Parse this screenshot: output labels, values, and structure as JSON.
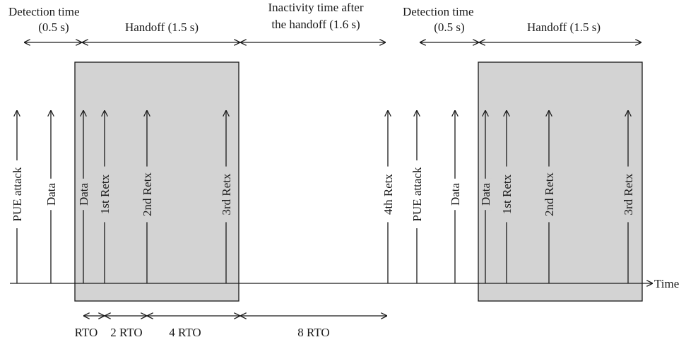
{
  "top_labels": {
    "detection_1": {
      "line1": "Detection time",
      "line2": "(0.5 s)"
    },
    "handoff_1": "Handoff (1.5 s)",
    "inactivity": {
      "line1": "Inactivity time after",
      "line2": "the handoff (1.6 s)"
    },
    "detection_2": {
      "line1": "Detection time",
      "line2": "(0.5 s)"
    },
    "handoff_2": "Handoff (1.5 s)"
  },
  "events": [
    "PUE attack",
    "Data",
    "Data",
    "1st Retx",
    "2nd Retx",
    "3rd Retx",
    "4th Retx",
    "PUE attack",
    "Data",
    "Data",
    "1st Retx",
    "2nd Retx",
    "3rd Retx"
  ],
  "axis_label": "Time",
  "rto_labels": [
    "RTO",
    "2 RTO",
    "4 RTO",
    "8 RTO"
  ]
}
